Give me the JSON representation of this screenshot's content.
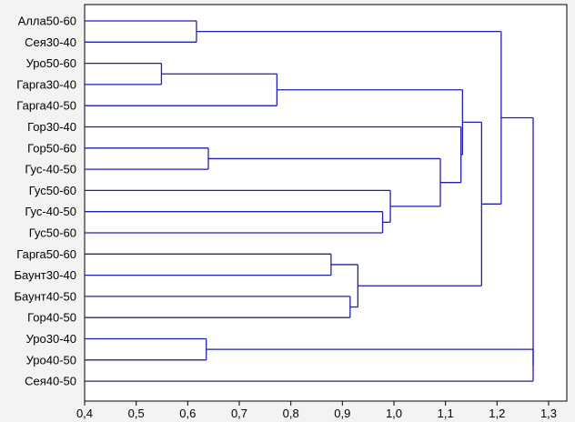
{
  "chart_data": {
    "type": "dendrogram",
    "title": "",
    "xlabel": "",
    "ylabel": "",
    "xlim": [
      0.4,
      1.3
    ],
    "xticks": [
      "0,4",
      "0,5",
      "0,6",
      "0,7",
      "0,8",
      "0,9",
      "1,0",
      "1,1",
      "1,2",
      "1,3"
    ],
    "leaves": [
      "Алла50-60",
      "Сея30-40",
      "Уро50-60",
      "Гарга30-40",
      "Гарга40-50",
      "Гор30-40",
      "Гор50-60",
      "Гус-40-50",
      "Гус50-60",
      "Гус-40-50",
      "Гус50-60",
      "Гарга50-60",
      "Баунт30-40",
      "Баунт40-50",
      "Гор40-50",
      "Уро30-40",
      "Уро40-50",
      "Сея40-50"
    ],
    "merges": [
      {
        "id": "c1",
        "children": [
          "L0",
          "L1"
        ],
        "height": 0.617
      },
      {
        "id": "c2",
        "children": [
          "L2",
          "L3"
        ],
        "height": 0.549
      },
      {
        "id": "c3",
        "children": [
          "c2",
          "L4"
        ],
        "height": 0.773
      },
      {
        "id": "c4",
        "children": [
          "L6",
          "L7"
        ],
        "height": 0.64
      },
      {
        "id": "c5",
        "children": [
          "L9",
          "L10"
        ],
        "height": 0.978
      },
      {
        "id": "c6",
        "children": [
          "L8",
          "c5"
        ],
        "height": 0.993
      },
      {
        "id": "c7",
        "children": [
          "c4",
          "c6"
        ],
        "height": 1.09
      },
      {
        "id": "c8",
        "children": [
          "L5",
          "c7"
        ],
        "height": 1.13
      },
      {
        "id": "c9",
        "children": [
          "c3",
          "c8"
        ],
        "height": 1.133
      },
      {
        "id": "c10",
        "children": [
          "L11",
          "L12"
        ],
        "height": 0.878
      },
      {
        "id": "c11",
        "children": [
          "L13",
          "L14"
        ],
        "height": 0.915
      },
      {
        "id": "c12",
        "children": [
          "c10",
          "c11"
        ],
        "height": 0.93
      },
      {
        "id": "c13",
        "children": [
          "c9",
          "c12"
        ],
        "height": 1.17
      },
      {
        "id": "c14",
        "children": [
          "c1",
          "c13"
        ],
        "height": 1.208
      },
      {
        "id": "c15",
        "children": [
          "L15",
          "L16"
        ],
        "height": 0.636
      },
      {
        "id": "c16",
        "children": [
          "c15",
          "L17"
        ],
        "height": 1.27
      },
      {
        "id": "c17",
        "children": [
          "c14",
          "c16"
        ],
        "height": 1.27
      }
    ],
    "grid": false,
    "colors": {
      "links": "#1f1fb0",
      "axis": "#000000",
      "background": "#f3f3f1"
    }
  }
}
